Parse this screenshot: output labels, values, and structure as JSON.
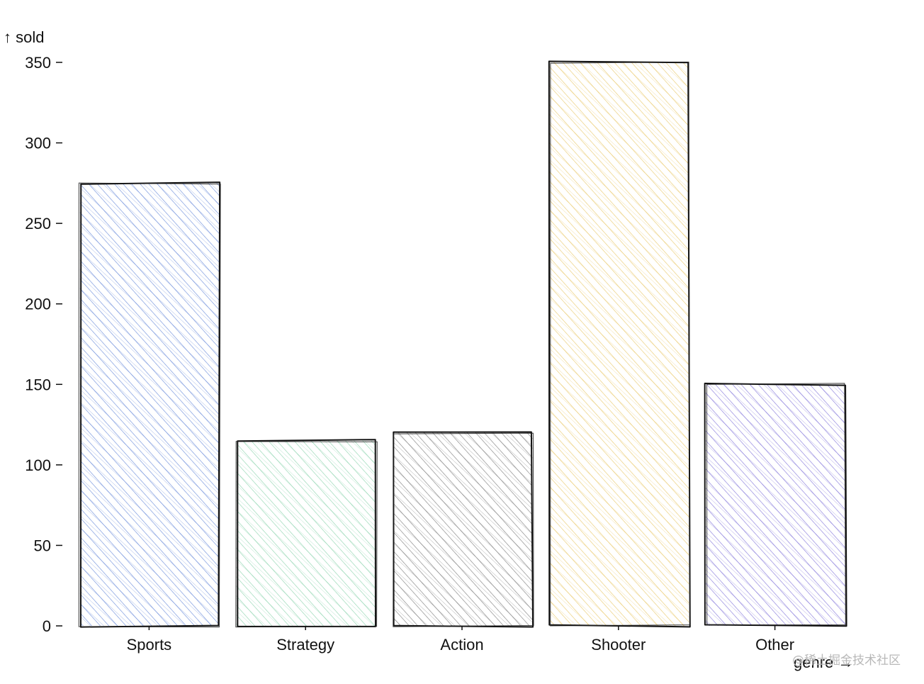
{
  "chart_data": {
    "type": "bar",
    "style": "hand-drawn hachure",
    "categories": [
      "Sports",
      "Strategy",
      "Action",
      "Shooter",
      "Other"
    ],
    "values": [
      275,
      115,
      120,
      350,
      150
    ],
    "colors": [
      "#5b7fd6",
      "#7fcfa5",
      "#6e6e6e",
      "#e7c35a",
      "#7768d6"
    ],
    "xlabel": "genre",
    "ylabel": "sold",
    "ylim": [
      0,
      350
    ],
    "yticks": [
      0,
      50,
      100,
      150,
      200,
      250,
      300,
      350
    ],
    "grid": false,
    "legend": "none"
  },
  "axes": {
    "y_title": "↑ sold",
    "x_title": "genre →"
  },
  "watermark": {
    "text": "@稀土掘金技术社区"
  }
}
